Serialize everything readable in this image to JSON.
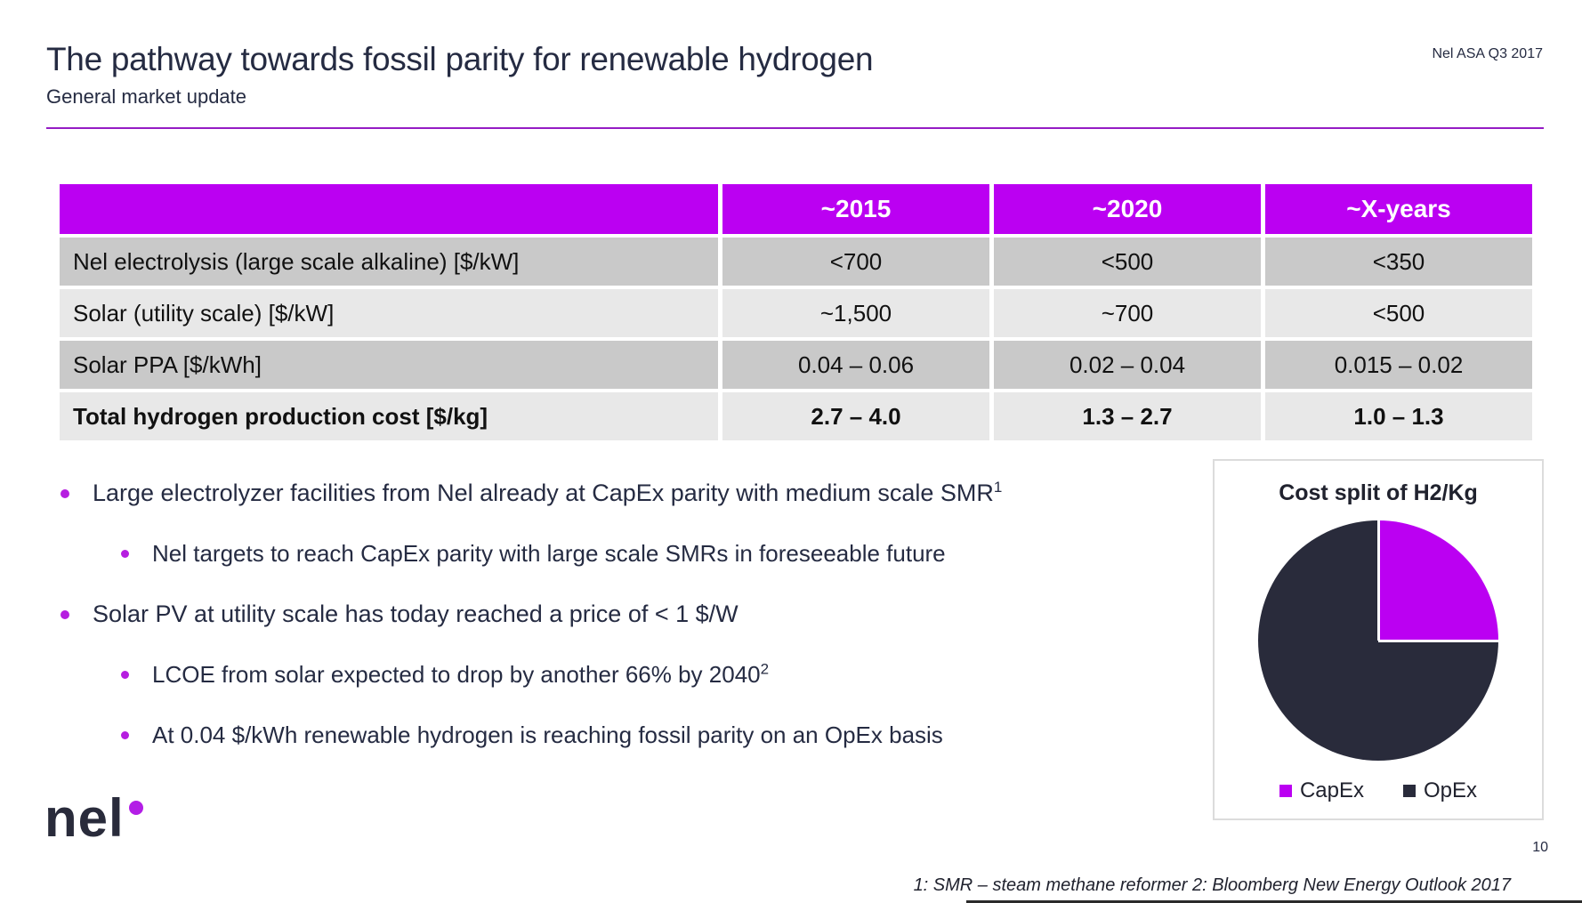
{
  "slide": {
    "title": "The pathway towards fossil parity for renewable hydrogen",
    "subtitle": "General market update",
    "corner_note": "Nel ASA Q3 2017",
    "page_number": "10",
    "footnote": "1: SMR – steam methane reformer 2: Bloomberg New Energy Outlook 2017",
    "logo_text": "nel"
  },
  "colors": {
    "accent_purple": "#bb00f2",
    "bullet_purple": "#b61ee0",
    "rule_purple": "#951cc4",
    "dark_navy": "#252b42",
    "pie_dark": "#292b3b",
    "row_dark": "#c9c9c9",
    "row_light": "#e8e8e8"
  },
  "table": {
    "header": [
      "",
      "~2015",
      "~2020",
      "~X-years"
    ],
    "rows": [
      {
        "label": "Nel electrolysis (large scale alkaline) [$/kW]",
        "values": [
          "<700",
          "<500",
          "<350"
        ]
      },
      {
        "label": "Solar (utility scale) [$/kW]",
        "values": [
          "~1,500",
          "~700",
          "<500"
        ]
      },
      {
        "label": "Solar PPA [$/kWh]",
        "values": [
          "0.04 – 0.06",
          "0.02 – 0.04",
          "0.015 – 0.02"
        ]
      },
      {
        "label": "Total hydrogen production cost [$/kg]",
        "values": [
          "2.7 – 4.0",
          "1.3 – 2.7",
          "1.0 – 1.3"
        ]
      }
    ]
  },
  "bullets": [
    {
      "level": 1,
      "text": "Large electrolyzer facilities from Nel already at CapEx parity with medium scale SMR",
      "sup": "1"
    },
    {
      "level": 2,
      "text": "Nel targets to reach CapEx parity with large scale SMRs in foreseeable future",
      "sup": ""
    },
    {
      "level": 1,
      "text": "Solar PV at utility scale has today reached a price of < 1 $/W",
      "sup": ""
    },
    {
      "level": 2,
      "text": "LCOE from solar expected to drop by another 66% by 2040",
      "sup": "2"
    },
    {
      "level": 2,
      "text": "At 0.04 $/kWh renewable hydrogen is reaching fossil parity on an OpEx basis",
      "sup": ""
    }
  ],
  "chart_data": {
    "type": "pie",
    "title": "Cost split of H2/Kg",
    "labels": [
      "CapEx",
      "OpEx"
    ],
    "values": [
      25,
      75
    ],
    "colors": [
      "#bb00f2",
      "#292b3b"
    ],
    "legend_position": "bottom",
    "start_angle_deg": 0
  }
}
